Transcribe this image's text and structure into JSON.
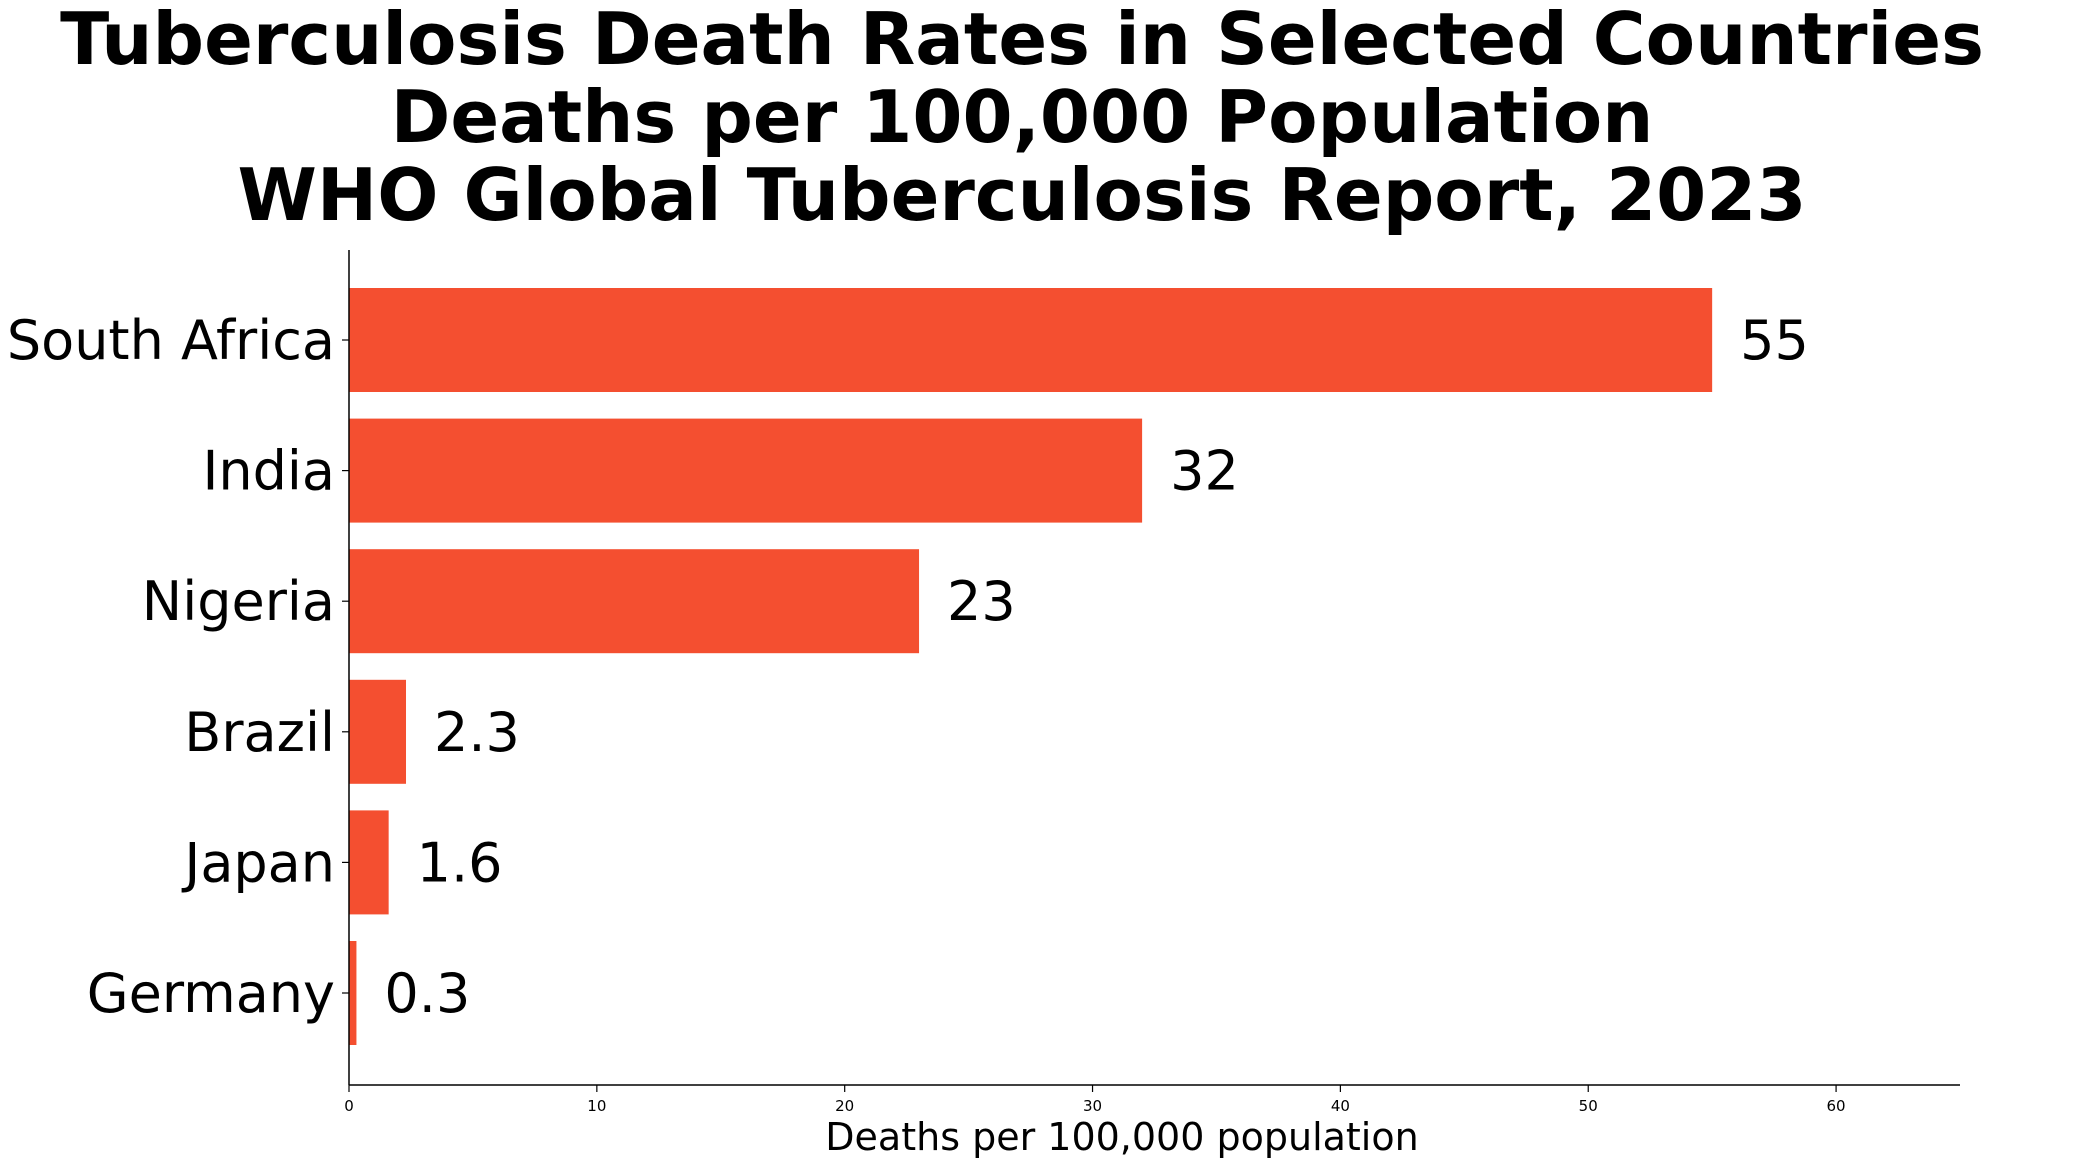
{
  "chart_data": {
    "type": "bar",
    "orientation": "horizontal",
    "title_lines": [
      "Tuberculosis Death Rates in Selected Countries",
      "Deaths per 100,000 Population",
      "WHO Global Tuberculosis Report, 2023"
    ],
    "categories": [
      "South Africa",
      "India",
      "Nigeria",
      "Brazil",
      "Japan",
      "Germany"
    ],
    "values": [
      55,
      32,
      23,
      2.3,
      1.6,
      0.3
    ],
    "value_labels": [
      "55",
      "32",
      "23",
      "2.3",
      "1.6",
      "0.3"
    ],
    "xlabel": "Deaths per 100,000 population",
    "ylabel": "",
    "xlim": [
      0,
      65
    ],
    "x_ticks": [
      0,
      10,
      20,
      30,
      40,
      50,
      60
    ],
    "x_tick_labels": [
      "0",
      "10",
      "20",
      "30",
      "40",
      "50",
      "60"
    ],
    "grid": false,
    "legend": "none",
    "bar_color": "#f44f30"
  }
}
